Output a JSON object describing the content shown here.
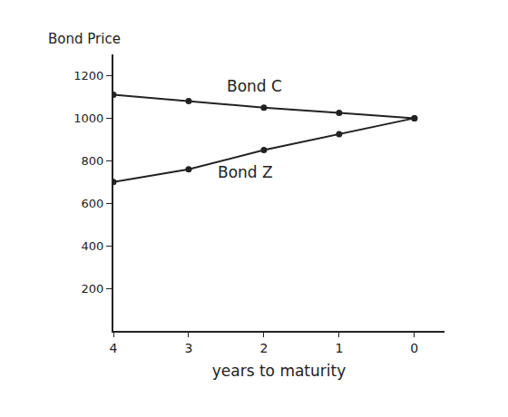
{
  "chart_data": {
    "type": "line",
    "y_label": "Bond Price",
    "x_label": "years to maturity",
    "x": [
      4,
      3,
      2,
      1,
      0
    ],
    "series": [
      {
        "name": "Bond C",
        "color": "#222222",
        "values": [
          1110,
          1080,
          1050,
          1025,
          1000
        ],
        "marker": "circle",
        "line_style": "solid"
      },
      {
        "name": "Bond Z",
        "color": "#222222",
        "values": [
          700,
          760,
          850,
          925,
          1000
        ],
        "marker": "circle",
        "line_style": "solid"
      }
    ],
    "xlim": [
      4,
      -0.4
    ],
    "xticks": [
      4,
      3,
      2,
      1,
      0
    ],
    "ylim": [
      0,
      1300
    ],
    "yticks": [
      200,
      400,
      600,
      800,
      1000,
      1200
    ],
    "grid": false
  }
}
